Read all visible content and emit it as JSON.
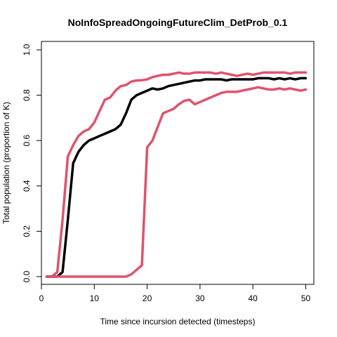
{
  "chart_data": {
    "type": "line",
    "title": "NoInfoSpreadOngoingFutureClim_DetProb_0.1",
    "xlabel": "Time since incursion detected (timesteps)",
    "ylabel": "Total population (proportion of K)",
    "xlim": [
      1,
      50
    ],
    "ylim": [
      0,
      1
    ],
    "x_ticks": [
      0,
      10,
      20,
      30,
      40,
      50
    ],
    "y_ticks": [
      0.0,
      0.2,
      0.4,
      0.6,
      0.8,
      1.0
    ],
    "y_tick_labels": [
      "0.0",
      "0.2",
      "0.4",
      "0.6",
      "0.8",
      "1.0"
    ],
    "grid": false,
    "legend": false,
    "series": [
      {
        "color": "#DF536B",
        "x": [
          1,
          2,
          3,
          4,
          5,
          6,
          7,
          8,
          9,
          10,
          11,
          12,
          13,
          14,
          15,
          16,
          17,
          18,
          19,
          20,
          21,
          22,
          23,
          24,
          25,
          26,
          27,
          28,
          29,
          30,
          31,
          32,
          33,
          34,
          35,
          36,
          37,
          38,
          39,
          40,
          41,
          42,
          43,
          44,
          45,
          46,
          47,
          48,
          49,
          50
        ],
        "values": [
          0,
          0,
          0.02,
          0.25,
          0.53,
          0.58,
          0.62,
          0.64,
          0.65,
          0.68,
          0.73,
          0.78,
          0.79,
          0.82,
          0.84,
          0.845,
          0.86,
          0.865,
          0.866,
          0.87,
          0.88,
          0.885,
          0.89,
          0.89,
          0.895,
          0.9,
          0.895,
          0.895,
          0.9,
          0.9,
          0.9,
          0.9,
          0.895,
          0.9,
          0.895,
          0.89,
          0.885,
          0.89,
          0.895,
          0.89,
          0.895,
          0.9,
          0.9,
          0.9,
          0.9,
          0.9,
          0.895,
          0.9,
          0.9,
          0.9
        ]
      },
      {
        "color": "#000000",
        "x": [
          1,
          2,
          3,
          4,
          5,
          6,
          7,
          8,
          9,
          10,
          11,
          12,
          13,
          14,
          15,
          16,
          17,
          18,
          19,
          20,
          21,
          22,
          23,
          24,
          25,
          26,
          27,
          28,
          29,
          30,
          31,
          32,
          33,
          34,
          35,
          36,
          37,
          38,
          39,
          40,
          41,
          42,
          43,
          44,
          45,
          46,
          47,
          48,
          49,
          50
        ],
        "values": [
          0,
          0,
          0,
          0.02,
          0.25,
          0.5,
          0.55,
          0.58,
          0.6,
          0.61,
          0.62,
          0.63,
          0.64,
          0.65,
          0.67,
          0.72,
          0.78,
          0.8,
          0.81,
          0.82,
          0.83,
          0.825,
          0.83,
          0.84,
          0.845,
          0.85,
          0.855,
          0.86,
          0.865,
          0.865,
          0.87,
          0.87,
          0.87,
          0.87,
          0.865,
          0.87,
          0.87,
          0.87,
          0.87,
          0.87,
          0.875,
          0.875,
          0.875,
          0.87,
          0.875,
          0.87,
          0.875,
          0.87,
          0.875,
          0.875
        ]
      },
      {
        "color": "#DF536B",
        "x": [
          1,
          2,
          3,
          4,
          5,
          6,
          7,
          8,
          9,
          10,
          11,
          12,
          13,
          14,
          15,
          16,
          17,
          18,
          19,
          20,
          21,
          22,
          23,
          24,
          25,
          26,
          27,
          28,
          29,
          30,
          31,
          32,
          33,
          34,
          35,
          36,
          37,
          38,
          39,
          40,
          41,
          42,
          43,
          44,
          45,
          46,
          47,
          48,
          49,
          50
        ],
        "values": [
          0,
          0,
          0,
          0,
          0,
          0,
          0,
          0,
          0,
          0,
          0,
          0,
          0,
          0,
          0,
          0,
          0.01,
          0.03,
          0.05,
          0.57,
          0.6,
          0.66,
          0.72,
          0.73,
          0.74,
          0.76,
          0.775,
          0.78,
          0.76,
          0.77,
          0.78,
          0.79,
          0.8,
          0.81,
          0.815,
          0.815,
          0.815,
          0.82,
          0.825,
          0.83,
          0.835,
          0.83,
          0.825,
          0.825,
          0.83,
          0.825,
          0.83,
          0.825,
          0.82,
          0.825
        ]
      }
    ]
  }
}
